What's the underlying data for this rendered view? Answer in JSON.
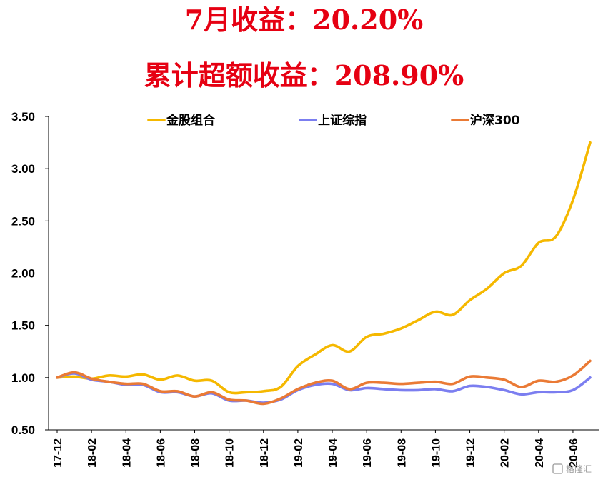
{
  "headline": {
    "monthly_return": "7月收益：20.20%",
    "cumulative_excess": "累计超额收益：208.90%"
  },
  "watermark": "格隆汇",
  "colors": {
    "headline": "#e60012",
    "series": [
      "#f5b800",
      "#7b7ef0",
      "#ea7a35"
    ],
    "axis": "#000000"
  },
  "chart_data": {
    "type": "line",
    "ylim": [
      0.5,
      3.5
    ],
    "yticks": [
      "0.50",
      "1.00",
      "1.50",
      "2.00",
      "2.50",
      "3.00",
      "3.50"
    ],
    "xticks": [
      "17-12",
      "18-02",
      "18-04",
      "18-06",
      "18-08",
      "18-10",
      "18-12",
      "19-02",
      "19-04",
      "19-06",
      "19-08",
      "19-10",
      "19-12",
      "20-02",
      "20-04",
      "20-06"
    ],
    "xlabel": "",
    "ylabel": "",
    "legend_position": "top",
    "grid": false,
    "x": [
      "17-12",
      "18-01",
      "18-02",
      "18-03",
      "18-04",
      "18-05",
      "18-06",
      "18-07",
      "18-08",
      "18-09",
      "18-10",
      "18-11",
      "18-12",
      "19-01",
      "19-02",
      "19-03",
      "19-04",
      "19-05",
      "19-06",
      "19-07",
      "19-08",
      "19-09",
      "19-10",
      "19-11",
      "19-12",
      "20-01",
      "20-02",
      "20-03",
      "20-04",
      "20-05",
      "20-06",
      "20-07"
    ],
    "series": [
      {
        "name": "金股组合",
        "values": [
          1.0,
          1.01,
          0.99,
          1.02,
          1.01,
          1.03,
          0.98,
          1.02,
          0.97,
          0.97,
          0.86,
          0.86,
          0.87,
          0.91,
          1.11,
          1.22,
          1.31,
          1.25,
          1.39,
          1.42,
          1.47,
          1.55,
          1.63,
          1.6,
          1.74,
          1.85,
          2.0,
          2.07,
          2.29,
          2.35,
          2.7,
          3.25
        ]
      },
      {
        "name": "上证综指",
        "values": [
          1.0,
          1.04,
          0.98,
          0.96,
          0.93,
          0.93,
          0.86,
          0.86,
          0.82,
          0.85,
          0.78,
          0.78,
          0.76,
          0.79,
          0.88,
          0.93,
          0.94,
          0.88,
          0.9,
          0.89,
          0.88,
          0.88,
          0.89,
          0.87,
          0.92,
          0.91,
          0.88,
          0.84,
          0.86,
          0.86,
          0.88,
          1.0
        ]
      },
      {
        "name": "沪深300",
        "values": [
          1.0,
          1.05,
          0.99,
          0.96,
          0.94,
          0.94,
          0.87,
          0.87,
          0.82,
          0.86,
          0.79,
          0.78,
          0.75,
          0.8,
          0.89,
          0.95,
          0.97,
          0.89,
          0.95,
          0.95,
          0.94,
          0.95,
          0.96,
          0.94,
          1.01,
          1.0,
          0.98,
          0.91,
          0.97,
          0.96,
          1.02,
          1.16
        ]
      }
    ]
  }
}
